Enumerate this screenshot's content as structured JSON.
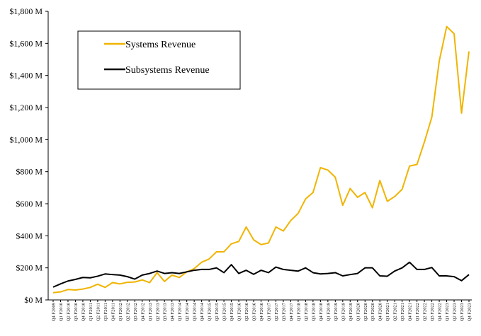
{
  "chart_data": {
    "type": "line",
    "title": "",
    "xlabel": "",
    "ylabel": "",
    "ylim": [
      0,
      1800
    ],
    "y_ticks": [
      {
        "value": 0,
        "label": "$0 M"
      },
      {
        "value": 200,
        "label": "$200 M"
      },
      {
        "value": 400,
        "label": "$400 M"
      },
      {
        "value": 600,
        "label": "$600 M"
      },
      {
        "value": 800,
        "label": "$800 M"
      },
      {
        "value": 1000,
        "label": "$1,000 M"
      },
      {
        "value": 1200,
        "label": "$1,200 M"
      },
      {
        "value": 1400,
        "label": "$1,400 M"
      },
      {
        "value": 1600,
        "label": "$1,600 M"
      },
      {
        "value": 1800,
        "label": "$1,800 M"
      }
    ],
    "grid": false,
    "legend_position": "top-left",
    "categories": [
      "Q4 F2009",
      "Q1 F2010",
      "Q2 F2010",
      "Q3 F2010",
      "Q4 F2010",
      "Q1 F2011",
      "Q2 F2011",
      "Q3 F2011",
      "Q4 F2011",
      "Q1 F2012",
      "Q2 F2012",
      "Q3 F2012",
      "Q4 F2012",
      "Q1 F2013",
      "Q2 F2013",
      "Q3 F2013",
      "Q4 F2013",
      "Q1 F2014",
      "Q2 F2014",
      "Q3 F2014",
      "Q4 F2014",
      "Q1 F2015",
      "Q2 F2015",
      "Q3 F2015",
      "Q4 F2015",
      "Q1 F2016",
      "Q2 F2016",
      "Q3 F2016",
      "Q4 F2016",
      "Q1 F2017",
      "Q2 F2017",
      "Q3 F2017",
      "Q4 F2017",
      "Q1 F2018",
      "Q2 F2018",
      "Q3 F2018",
      "Q4 F2018",
      "Q1 F2019",
      "Q2 F2019",
      "Q3 F2019",
      "Q4 F2019",
      "Q1 F2020",
      "Q2 F2020",
      "Q3 F2020",
      "Q4 F2020",
      "Q1 F2021",
      "Q2 F2021",
      "Q3 F2021",
      "Q4 F2021",
      "Q1 F2022",
      "Q2 F2022",
      "Q3 F2022",
      "Q4 F2022",
      "Q1 F2023",
      "Q2 F2023",
      "Q3 F2023",
      "Q4 F2023"
    ],
    "series": [
      {
        "name": "Systems Revenue",
        "color": "#f0b400",
        "values": [
          45,
          50,
          65,
          62,
          68,
          78,
          98,
          78,
          108,
          100,
          110,
          112,
          125,
          108,
          170,
          115,
          155,
          140,
          175,
          195,
          235,
          255,
          300,
          300,
          350,
          365,
          455,
          375,
          345,
          355,
          455,
          430,
          495,
          540,
          630,
          670,
          825,
          810,
          765,
          590,
          695,
          640,
          670,
          575,
          745,
          615,
          645,
          690,
          835,
          845,
          985,
          1140,
          1490,
          1705,
          1660,
          1165,
          1550
        ]
      },
      {
        "name": "Subsystems Revenue",
        "color": "#000000",
        "values": [
          80,
          100,
          118,
          128,
          140,
          138,
          148,
          162,
          158,
          155,
          145,
          130,
          155,
          165,
          180,
          165,
          170,
          165,
          175,
          185,
          190,
          190,
          200,
          170,
          220,
          165,
          185,
          160,
          185,
          170,
          205,
          190,
          185,
          180,
          200,
          170,
          162,
          165,
          170,
          150,
          158,
          165,
          200,
          200,
          150,
          148,
          180,
          200,
          235,
          190,
          190,
          202,
          150,
          150,
          145,
          120,
          158
        ]
      }
    ]
  }
}
